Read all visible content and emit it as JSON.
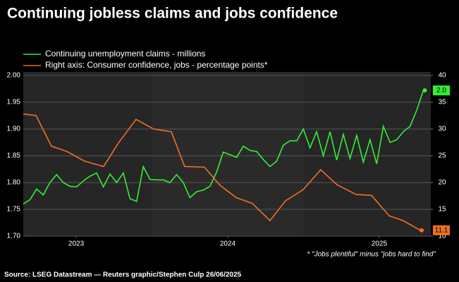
{
  "chart_data": {
    "type": "line",
    "title": "Continuing jobless claims and jobs confidence",
    "footnote": "* \"Jobs plentiful\" minus \"jobs hard to find\"",
    "source": "Source: LSEG Datastream — Reuters graphic/Stephen Culp 26/06/2025",
    "xlim": [
      2023.151,
      2025.84
    ],
    "xticks": [
      {
        "value": 2023.5,
        "label": "2023"
      },
      {
        "value": 2024.5,
        "label": "2024"
      },
      {
        "value": 2025.5,
        "label": "2025"
      }
    ],
    "ylim": [
      1.7,
      2.0
    ],
    "yticks": [
      {
        "value": 1.7,
        "label": "1.70"
      },
      {
        "value": 1.75,
        "label": "1.75"
      },
      {
        "value": 1.8,
        "label": "1.80"
      },
      {
        "value": 1.85,
        "label": "1.85"
      },
      {
        "value": 1.9,
        "label": "1.90"
      },
      {
        "value": 1.95,
        "label": "1.95"
      },
      {
        "value": 2.0,
        "label": "2.00"
      }
    ],
    "y2lim": [
      10,
      40
    ],
    "y2ticks": [
      10,
      15,
      20,
      25,
      30,
      35,
      40
    ],
    "grid": true,
    "series": [
      {
        "name": "Continuing unemployment claims - millions",
        "color": "#33ee33",
        "x": [
          2023.151,
          2023.195,
          2023.239,
          2023.283,
          2023.327,
          2023.371,
          2023.415,
          2023.459,
          2023.503,
          2023.547,
          2023.591,
          2023.635,
          2023.679,
          2023.723,
          2023.767,
          2023.811,
          2023.855,
          2023.899,
          2023.943,
          2023.987,
          2024.031,
          2024.075,
          2024.119,
          2024.163,
          2024.207,
          2024.251,
          2024.295,
          2024.339,
          2024.383,
          2024.427,
          2024.471,
          2024.515,
          2024.559,
          2024.603,
          2024.647,
          2024.691,
          2024.735,
          2024.779,
          2024.823,
          2024.867,
          2024.911,
          2024.955,
          2024.999,
          2025.043,
          2025.087,
          2025.131,
          2025.175,
          2025.219,
          2025.263,
          2025.307,
          2025.351,
          2025.395,
          2025.439,
          2025.483,
          2025.527,
          2025.571,
          2025.615,
          2025.659,
          2025.703,
          2025.747,
          2025.791
        ],
        "values": [
          1.76,
          1.768,
          1.788,
          1.777,
          1.8,
          1.815,
          1.8,
          1.793,
          1.792,
          1.803,
          1.812,
          1.818,
          1.792,
          1.816,
          1.8,
          1.818,
          1.77,
          1.765,
          1.83,
          1.806,
          1.805,
          1.805,
          1.8,
          1.815,
          1.8,
          1.772,
          1.783,
          1.786,
          1.793,
          1.82,
          1.857,
          1.852,
          1.847,
          1.868,
          1.86,
          1.858,
          1.843,
          1.83,
          1.84,
          1.87,
          1.878,
          1.878,
          1.9,
          1.865,
          1.895,
          1.85,
          1.895,
          1.842,
          1.89,
          1.845,
          1.888,
          1.838,
          1.88,
          1.835,
          1.905,
          1.875,
          1.88,
          1.895,
          1.905,
          1.935,
          1.972
        ],
        "value_labels": [
          null,
          null,
          null,
          null,
          null,
          null,
          null,
          null,
          null,
          null,
          null,
          null,
          null,
          null,
          null,
          null,
          null,
          null,
          null,
          null,
          null,
          null,
          null,
          null,
          null,
          null,
          null,
          null,
          null,
          null,
          null,
          null,
          null,
          null,
          null,
          null,
          null,
          null,
          null,
          null,
          null,
          null,
          null,
          null,
          null,
          null,
          null,
          null,
          null,
          null,
          null,
          null,
          null,
          null,
          null,
          null,
          null,
          null,
          null,
          null,
          "2.0"
        ]
      },
      {
        "name": "Right axis: Consumer confidence, jobs - percentage points*",
        "color": "#f07020",
        "axis": "y2",
        "x": [
          2023.151,
          2023.235,
          2023.337,
          2023.439,
          2023.556,
          2023.681,
          2023.779,
          2023.895,
          2024.011,
          2024.128,
          2024.216,
          2024.346,
          2024.449,
          2024.556,
          2024.663,
          2024.779,
          2024.881,
          2024.998,
          2025.114,
          2025.221,
          2025.346,
          2025.449,
          2025.565,
          2025.658,
          2025.77
        ],
        "values": [
          32.8,
          32.5,
          26.8,
          25.8,
          24.0,
          23.0,
          27.4,
          31.8,
          30.0,
          29.5,
          23.0,
          22.9,
          19.5,
          17.2,
          16.1,
          12.9,
          16.6,
          18.7,
          22.4,
          19.6,
          17.8,
          17.6,
          13.8,
          12.9,
          11.1
        ],
        "value_labels": [
          null,
          null,
          null,
          null,
          null,
          null,
          null,
          null,
          null,
          null,
          null,
          null,
          null,
          null,
          null,
          null,
          null,
          null,
          null,
          null,
          null,
          null,
          null,
          null,
          "11.1"
        ]
      }
    ]
  }
}
